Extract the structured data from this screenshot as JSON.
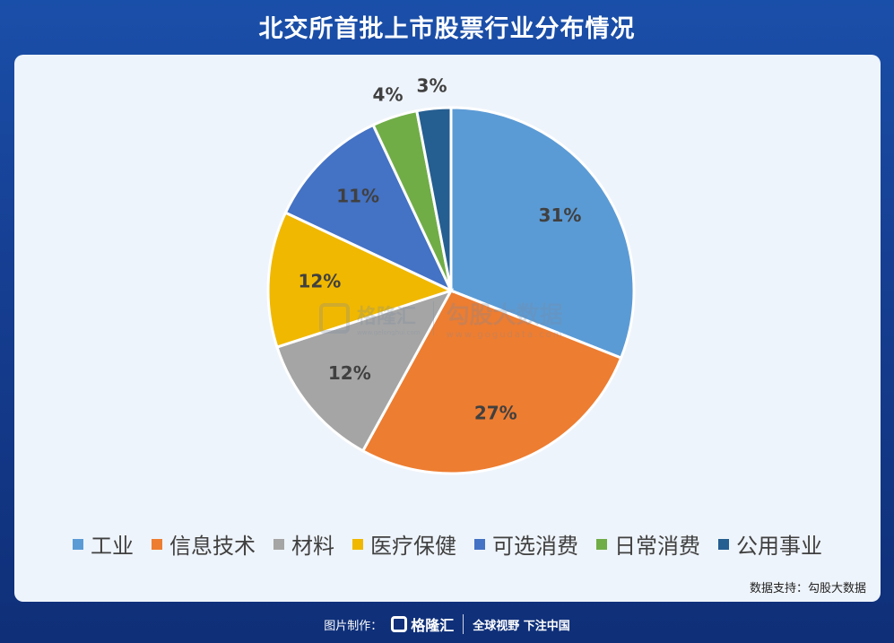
{
  "header": {
    "title": "北交所首批上市股票行业分布情况"
  },
  "chart_data": {
    "type": "pie",
    "title": "北交所首批上市股票行业分布情况",
    "unit": "%",
    "categories": [
      "工业",
      "信息技术",
      "材料",
      "医疗保健",
      "可选消费",
      "日常消费",
      "公用事业"
    ],
    "values": [
      31,
      27,
      12,
      12,
      11,
      4,
      3
    ],
    "labels": [
      "31%",
      "27%",
      "12%",
      "12%",
      "11%",
      "4%",
      "3%"
    ],
    "colors": [
      "#5b9bd5",
      "#ed7d31",
      "#a5a5a5",
      "#f0b800",
      "#4472c4",
      "#70ad47",
      "#255e91"
    ],
    "legend_position": "bottom"
  },
  "source": {
    "text": "数据支持：勾股大数据"
  },
  "watermark": {
    "brand": "格隆汇",
    "brand_sub": "www.gelonghui.com",
    "gogu": "勾股大数据",
    "gogu_url": "www.gogudata.com"
  },
  "footer": {
    "prefix": "图片制作：",
    "brand": "格隆汇",
    "slogan": "全球视野 下注中国"
  }
}
